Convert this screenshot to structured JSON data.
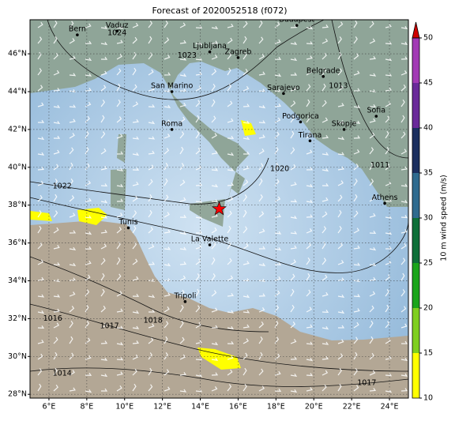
{
  "chart_data": {
    "type": "map",
    "title": "Forecast of 2020052518 (f072)",
    "xlim": [
      5,
      25
    ],
    "ylim": [
      27.8,
      47.8
    ],
    "grid": true,
    "xticks": [
      {
        "value": 6,
        "label": "6°E"
      },
      {
        "value": 8,
        "label": "8°E"
      },
      {
        "value": 10,
        "label": "10°E"
      },
      {
        "value": 12,
        "label": "12°E"
      },
      {
        "value": 14,
        "label": "14°E"
      },
      {
        "value": 16,
        "label": "16°E"
      },
      {
        "value": 18,
        "label": "18°E"
      },
      {
        "value": 20,
        "label": "20°E"
      },
      {
        "value": 22,
        "label": "22°E"
      },
      {
        "value": 24,
        "label": "24°E"
      }
    ],
    "yticks": [
      {
        "value": 28,
        "label": "28°N"
      },
      {
        "value": 30,
        "label": "30°N"
      },
      {
        "value": 32,
        "label": "32°N"
      },
      {
        "value": 34,
        "label": "34°N"
      },
      {
        "value": 36,
        "label": "36°N"
      },
      {
        "value": 38,
        "label": "38°N"
      },
      {
        "value": 40,
        "label": "40°N"
      },
      {
        "value": 42,
        "label": "42°N"
      },
      {
        "value": 44,
        "label": "44°N"
      },
      {
        "value": 46,
        "label": "46°N"
      }
    ],
    "cities": [
      {
        "name": "Bern",
        "lon": 7.5,
        "lat": 47.0
      },
      {
        "name": "Vaduz",
        "lon": 9.6,
        "lat": 47.2
      },
      {
        "name": "Budapest",
        "lon": 19.1,
        "lat": 47.5
      },
      {
        "name": "Ljubljana",
        "lon": 14.5,
        "lat": 46.1
      },
      {
        "name": "Zagreb",
        "lon": 16.0,
        "lat": 45.8
      },
      {
        "name": "San Marino",
        "lon": 12.5,
        "lat": 44.0
      },
      {
        "name": "Sarajevo",
        "lon": 18.4,
        "lat": 43.9
      },
      {
        "name": "Belgrade",
        "lon": 20.5,
        "lat": 44.8
      },
      {
        "name": "Podgorica",
        "lon": 19.3,
        "lat": 42.4
      },
      {
        "name": "Skopje",
        "lon": 21.6,
        "lat": 42.0
      },
      {
        "name": "Tirana",
        "lon": 19.8,
        "lat": 41.4
      },
      {
        "name": "Sofia",
        "lon": 23.3,
        "lat": 42.7
      },
      {
        "name": "Roma",
        "lon": 12.5,
        "lat": 42.0
      },
      {
        "name": "Tunis",
        "lon": 10.2,
        "lat": 36.8
      },
      {
        "name": "La Valette",
        "lon": 14.5,
        "lat": 35.9
      },
      {
        "name": "Tripoli",
        "lon": 13.2,
        "lat": 32.9
      },
      {
        "name": "Athens",
        "lon": 23.75,
        "lat": 38.1
      }
    ],
    "star": {
      "lon": 15.0,
      "lat": 37.8,
      "color": "#ff0000"
    },
    "contour_labels": [
      {
        "text": "1024",
        "lon": 9.6,
        "lat": 47.1
      },
      {
        "text": "1023",
        "lon": 13.3,
        "lat": 45.9
      },
      {
        "text": "1013",
        "lon": 21.3,
        "lat": 44.3
      },
      {
        "text": "1022",
        "lon": 6.7,
        "lat": 39.0
      },
      {
        "text": "1020",
        "lon": 18.2,
        "lat": 39.9
      },
      {
        "text": "1011",
        "lon": 23.5,
        "lat": 40.1
      },
      {
        "text": "1016",
        "lon": 6.2,
        "lat": 32.0
      },
      {
        "text": "1017",
        "lon": 9.2,
        "lat": 31.6
      },
      {
        "text": "1018",
        "lon": 11.5,
        "lat": 31.9
      },
      {
        "text": "1014",
        "lon": 6.7,
        "lat": 29.1
      },
      {
        "text": "1017",
        "lon": 22.8,
        "lat": 28.6
      }
    ],
    "colorbar": {
      "label": "10 m wind speed (m/s)",
      "ticks": [
        10,
        15,
        20,
        25,
        30,
        35,
        40,
        45,
        50
      ],
      "colors": [
        "#ffff00",
        "#7fcf1f",
        "#1aa51a",
        "#0d6f38",
        "#2f6b8f",
        "#1b2f5f",
        "#6a2a9a",
        "#a23ab5"
      ],
      "extend_color": "#d00000"
    }
  }
}
